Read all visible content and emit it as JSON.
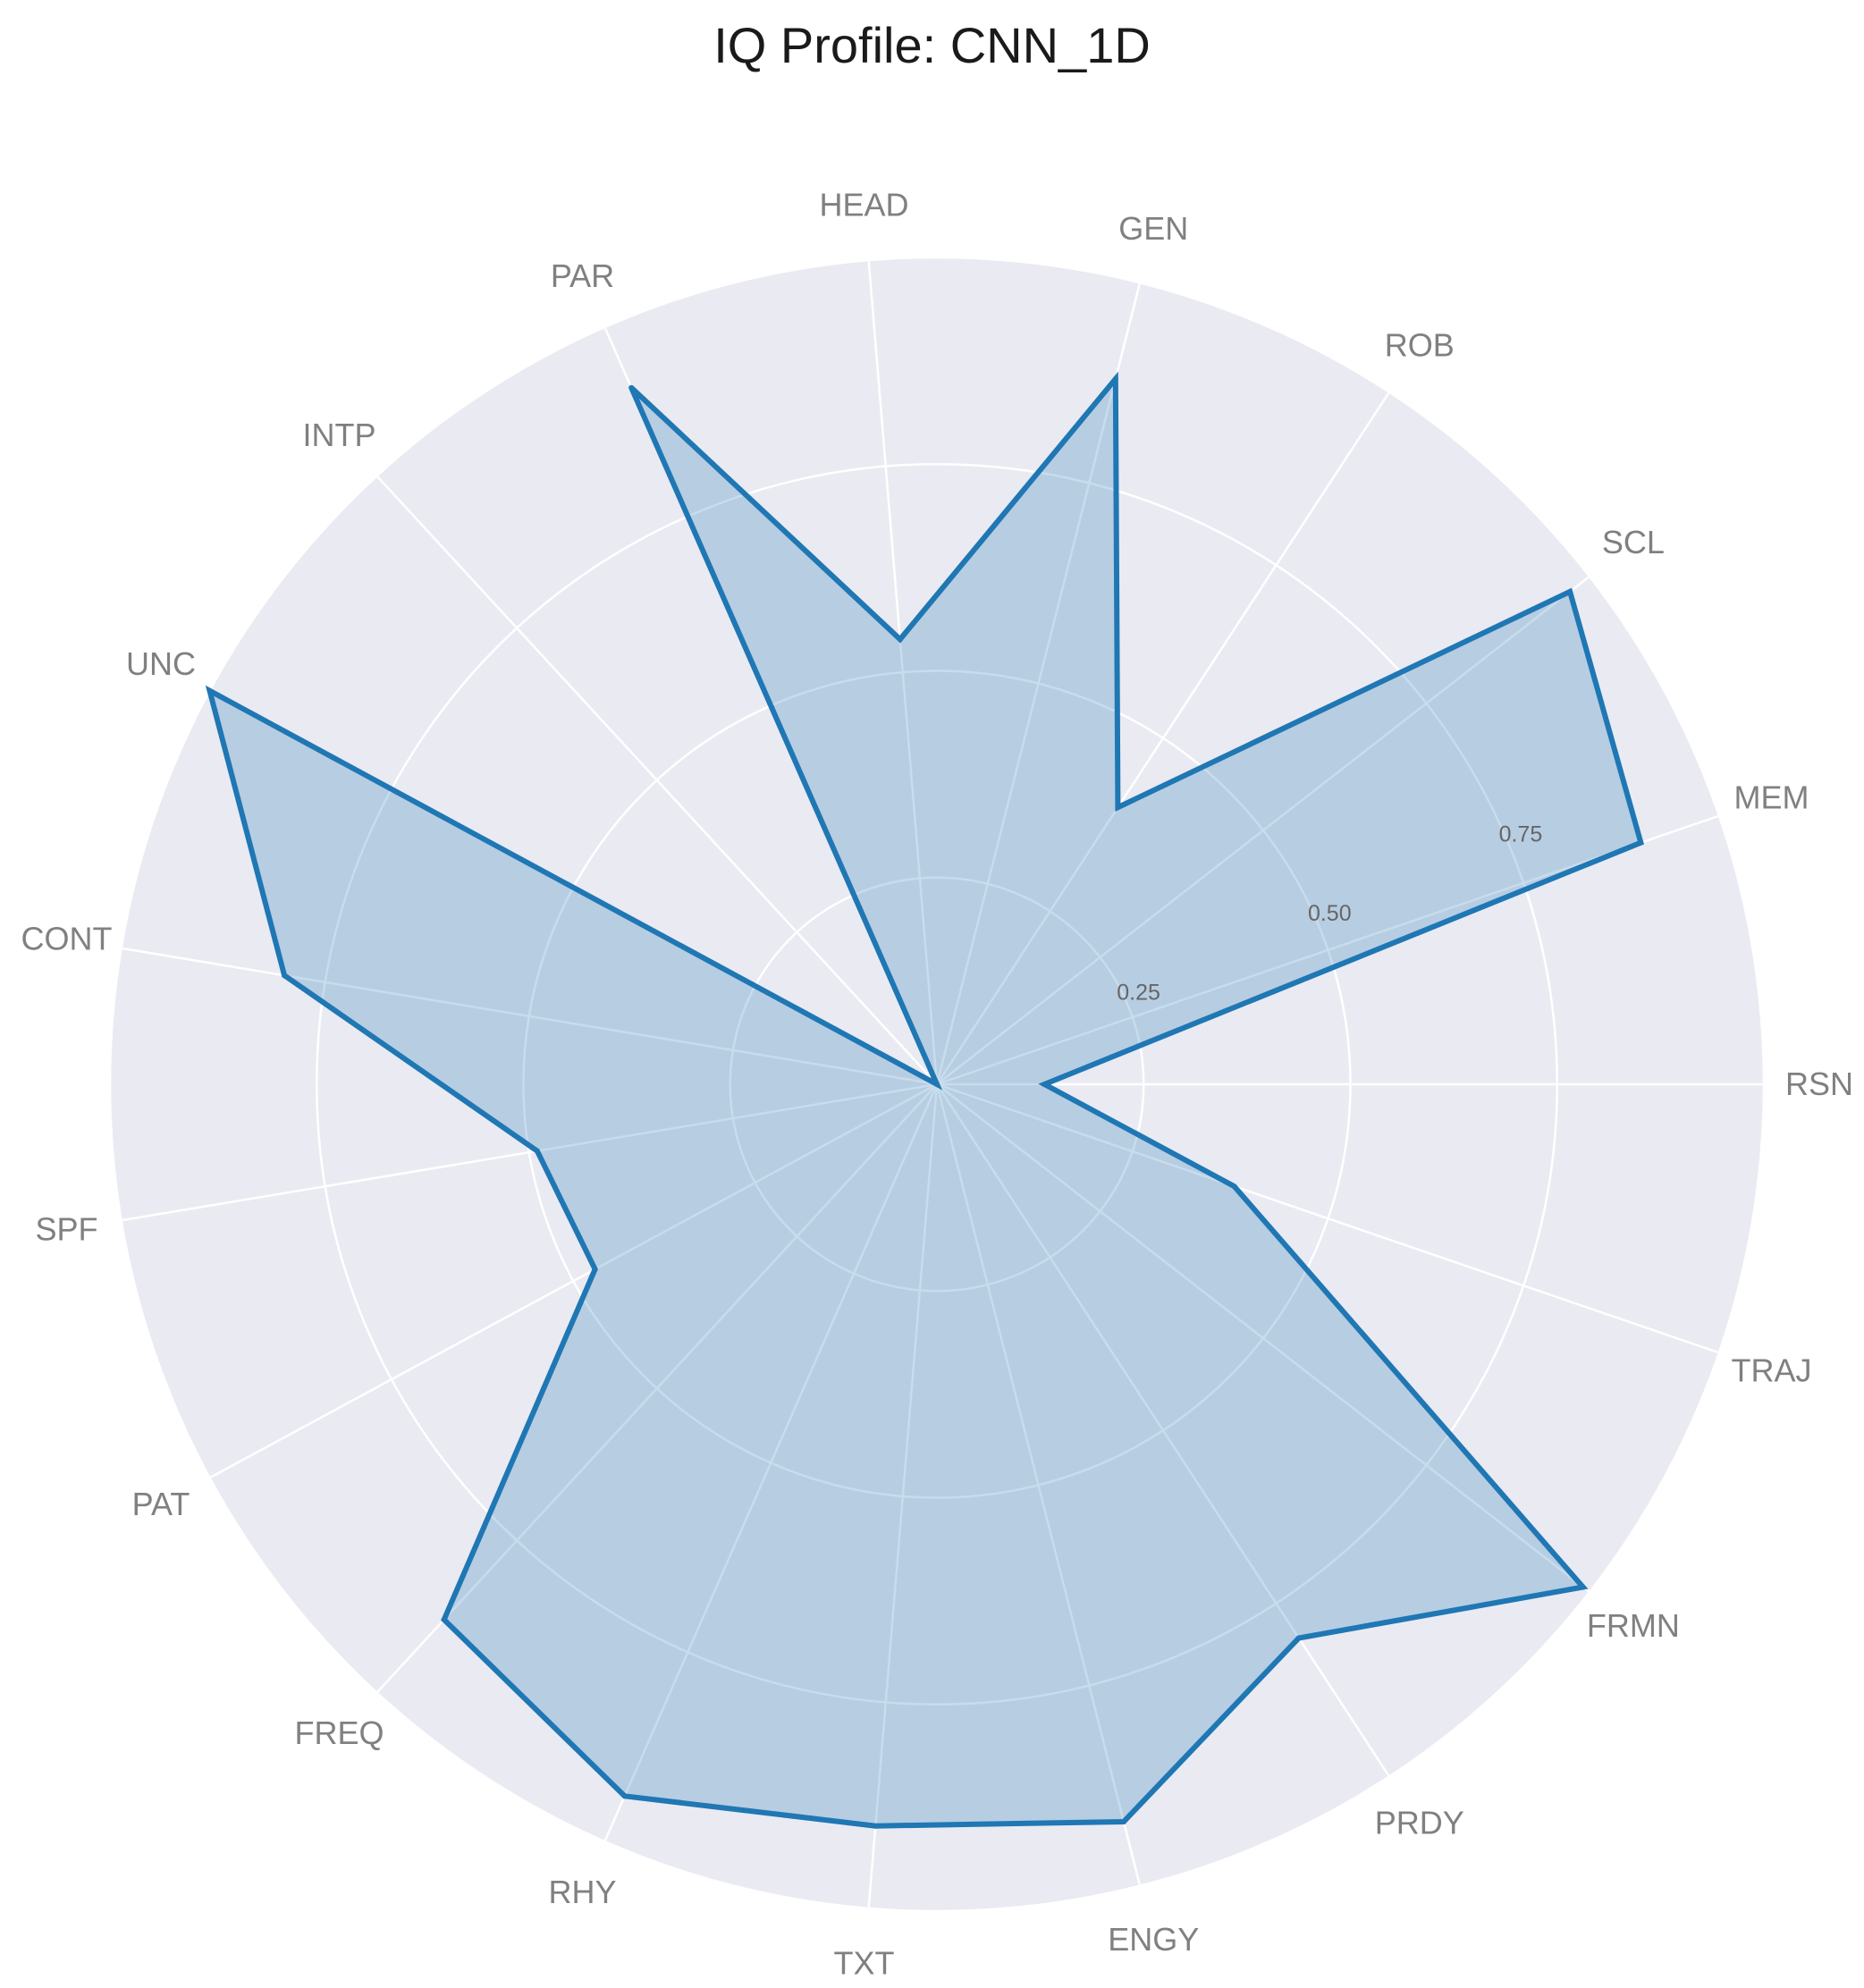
{
  "chart_data": {
    "type": "radar",
    "title": "IQ Profile: CNN_1D",
    "categories": [
      "RSN",
      "MEM",
      "SCL",
      "ROB",
      "GEN",
      "HEAD",
      "PAR",
      "INTP",
      "UNC",
      "CONT",
      "SPF",
      "PAT",
      "FREQ",
      "RHY",
      "TXT",
      "ENGY",
      "PRDY",
      "FRMN",
      "TRAJ"
    ],
    "series": [
      {
        "values": [
          0.13,
          0.9,
          0.97,
          0.4,
          0.88,
          0.54,
          0.92,
          0.0,
          1.0,
          0.8,
          0.49,
          0.47,
          0.88,
          0.94,
          0.9,
          0.92,
          0.8,
          0.99,
          0.38
        ]
      }
    ],
    "rlim": [
      0,
      1
    ],
    "rticks": [
      0.25,
      0.5,
      0.75
    ],
    "rtick_labels": [
      "0.25",
      "0.50",
      "0.75"
    ],
    "grid": true,
    "colors": {
      "line": "#1f77b4",
      "fill": "#1f77b4",
      "background": "#eaeaf2",
      "grid": "#ffffff",
      "label": "#808080"
    }
  }
}
